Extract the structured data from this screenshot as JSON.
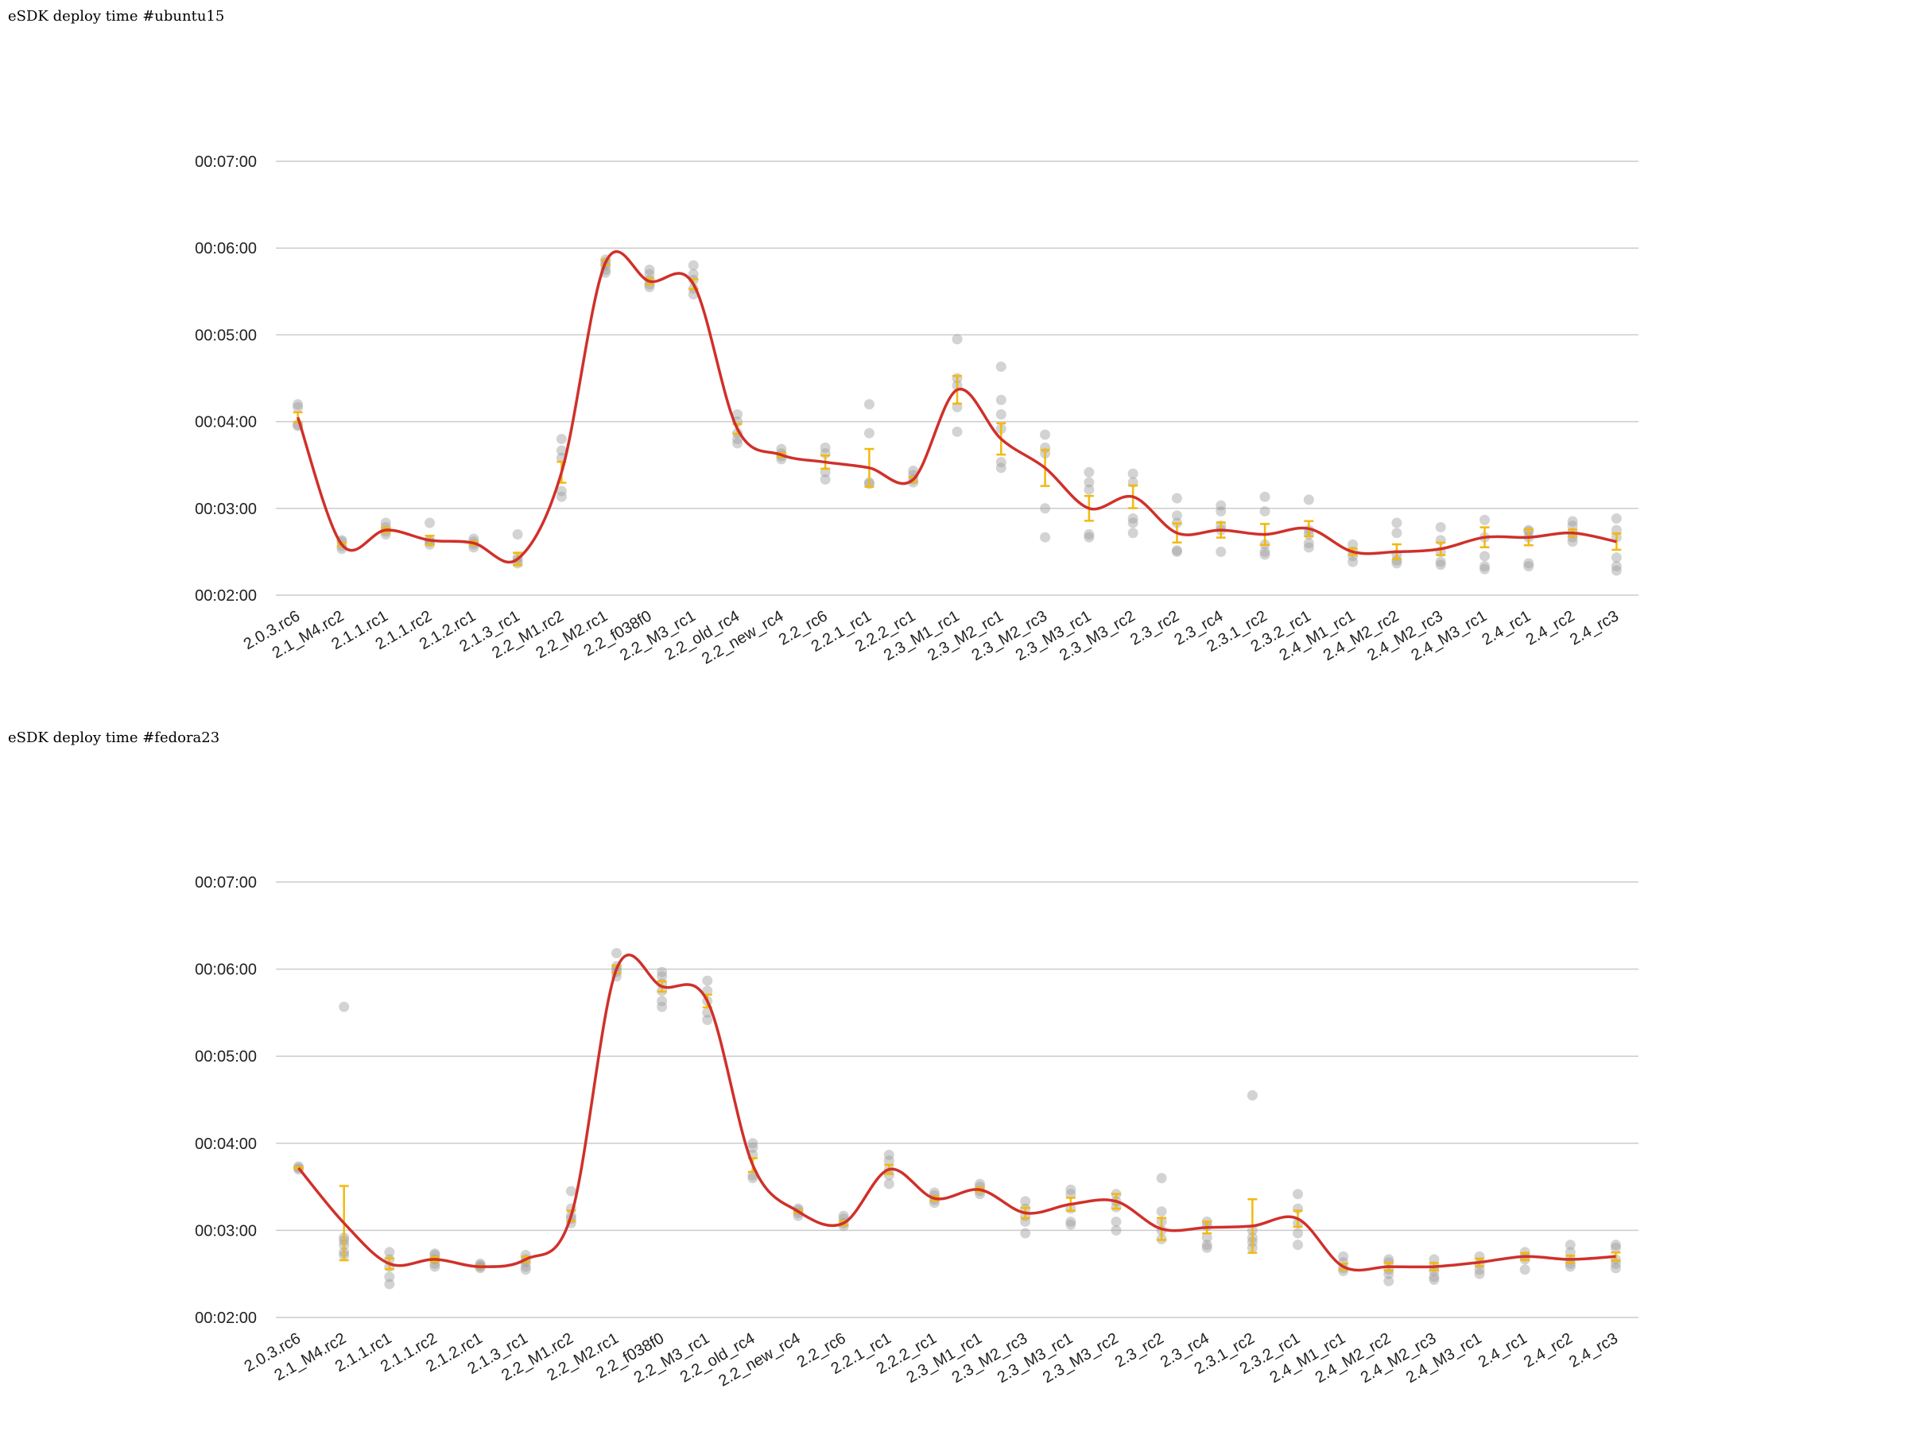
{
  "colors": {
    "trend": "#d0302a",
    "error_bar": "#f2b90f",
    "points": "#9e9e9e",
    "grid": "#cccccc"
  },
  "chart_data": [
    {
      "type": "scatter",
      "title": "eSDK deploy time #ubuntu15",
      "ylabel": "",
      "xlabel": "",
      "ylim": [
        120,
        420
      ],
      "yticks": [
        "00:02:00",
        "00:03:00",
        "00:04:00",
        "00:05:00",
        "00:06:00",
        "00:07:00"
      ],
      "grid": true,
      "trendline": "smooth mean",
      "categories": [
        "2.0.3.rc6",
        "2.1_M4.rc2",
        "2.1.1.rc1",
        "2.1.1.rc2",
        "2.1.2.rc1",
        "2.1.3_rc1",
        "2.2_M1.rc2",
        "2.2_M2.rc1",
        "2.2_f038f0",
        "2.2_M3_rc1",
        "2.2_old_rc4",
        "2.2_new_rc4",
        "2.2_rc6",
        "2.2.1_rc1",
        "2.2.2_rc1",
        "2.3_M1_rc1",
        "2.3_M2_rc1",
        "2.3_M2_rc3",
        "2.3_M3_rc1",
        "2.3_M3_rc2",
        "2.3_rc2",
        "2.3_rc4",
        "2.3.1_rc2",
        "2.3.2_rc1",
        "2.4_M1_rc1",
        "2.4_M2_rc2",
        "2.4_M2_rc3",
        "2.4_M3_rc1",
        "2.4_rc1",
        "2.4_rc2",
        "2.4_rc3"
      ],
      "mean_seconds": [
        243,
        155,
        165,
        158,
        156,
        145,
        205,
        350,
        337,
        335,
        235,
        217,
        212,
        208,
        200,
        262,
        228,
        208,
        180,
        188,
        163,
        165,
        162,
        166,
        150,
        150,
        152,
        160,
        160,
        163,
        157
      ],
      "samples_seconds": [
        [
          237,
          238,
          250,
          252
        ],
        [
          152,
          154,
          157,
          158
        ],
        [
          162,
          164,
          167,
          170
        ],
        [
          155,
          157,
          158,
          170
        ],
        [
          153,
          155,
          157,
          159
        ],
        [
          142,
          144,
          146,
          162
        ],
        [
          188,
          192,
          215,
          220,
          228
        ],
        [
          343,
          345,
          348,
          350,
          352
        ],
        [
          333,
          335,
          338,
          342,
          345
        ],
        [
          328,
          332,
          338,
          342,
          348
        ],
        [
          225,
          228,
          232,
          240,
          245
        ],
        [
          214,
          216,
          218,
          221
        ],
        [
          200,
          205,
          218,
          222
        ],
        [
          197,
          198,
          232,
          252
        ],
        [
          198,
          200,
          203,
          206
        ],
        [
          233,
          250,
          265,
          270,
          297
        ],
        [
          208,
          212,
          235,
          245,
          255,
          278
        ],
        [
          160,
          180,
          218,
          222,
          231
        ],
        [
          160,
          162,
          193,
          198,
          205
        ],
        [
          163,
          170,
          173,
          198,
          204
        ],
        [
          150,
          151,
          170,
          175,
          187
        ],
        [
          150,
          165,
          168,
          178,
          182
        ],
        [
          148,
          150,
          155,
          178,
          188
        ],
        [
          153,
          156,
          162,
          165,
          186
        ],
        [
          143,
          147,
          150,
          155
        ],
        [
          142,
          144,
          148,
          163,
          170
        ],
        [
          141,
          143,
          150,
          158,
          167
        ],
        [
          138,
          140,
          147,
          160,
          172
        ],
        [
          140,
          142,
          160,
          164,
          165
        ],
        [
          157,
          160,
          163,
          168,
          171
        ],
        [
          137,
          140,
          146,
          160,
          165,
          173
        ]
      ]
    },
    {
      "type": "scatter",
      "title": "eSDK deploy time #fedora23",
      "ylabel": "",
      "xlabel": "",
      "ylim": [
        120,
        420
      ],
      "yticks": [
        "00:02:00",
        "00:03:00",
        "00:04:00",
        "00:05:00",
        "00:06:00",
        "00:07:00"
      ],
      "grid": true,
      "trendline": "smooth mean",
      "categories": [
        "2.0.3.rc6",
        "2.1_M4.rc2",
        "2.1.1.rc1",
        "2.1.1.rc2",
        "2.1.2.rc1",
        "2.1.3_rc1",
        "2.2_M1.rc2",
        "2.2_M2.rc1",
        "2.2_f038f0",
        "2.2_M3_rc1",
        "2.2_old_rc4",
        "2.2_new_rc4",
        "2.2_rc6",
        "2.2.1_rc1",
        "2.2.2_rc1",
        "2.3_M1_rc1",
        "2.3_M2_rc3",
        "2.3_M3_rc1",
        "2.3_M3_rc2",
        "2.3_rc2",
        "2.3_rc4",
        "2.3.1_rc2",
        "2.3.2_rc1",
        "2.4_M1_rc1",
        "2.4_M2_rc2",
        "2.4_M2_rc3",
        "2.4_M3_rc1",
        "2.4_rc1",
        "2.4_rc2",
        "2.4_rc3"
      ],
      "mean_seconds": [
        223,
        185,
        157,
        160,
        155,
        160,
        190,
        360,
        348,
        338,
        225,
        193,
        185,
        222,
        202,
        208,
        192,
        198,
        200,
        181,
        182,
        183,
        188,
        155,
        155,
        155,
        158,
        162,
        160,
        162
      ],
      "samples_seconds": [
        [
          222,
          223,
          224
        ],
        [
          163,
          165,
          170,
          173,
          175,
          334
        ],
        [
          143,
          148,
          155,
          160,
          165
        ],
        [
          155,
          157,
          160,
          163,
          164
        ],
        [
          154,
          155,
          156,
          157
        ],
        [
          153,
          155,
          158,
          160,
          163
        ],
        [
          185,
          188,
          190,
          195,
          207
        ],
        [
          355,
          358,
          360,
          362,
          371
        ],
        [
          334,
          338,
          345,
          350,
          355,
          358
        ],
        [
          325,
          330,
          338,
          345,
          352
        ],
        [
          216,
          218,
          232,
          237,
          240
        ],
        [
          190,
          192,
          194,
          195
        ],
        [
          183,
          185,
          188,
          190
        ],
        [
          212,
          218,
          222,
          228,
          232
        ],
        [
          199,
          201,
          204,
          206
        ],
        [
          205,
          207,
          210,
          212
        ],
        [
          178,
          186,
          190,
          195,
          200
        ],
        [
          184,
          186,
          195,
          205,
          208
        ],
        [
          180,
          186,
          196,
          200,
          205
        ],
        [
          174,
          180,
          186,
          193,
          216
        ],
        [
          168,
          170,
          175,
          183,
          186
        ],
        [
          168,
          172,
          175,
          180,
          273
        ],
        [
          170,
          178,
          185,
          195,
          205
        ],
        [
          152,
          154,
          158,
          162
        ],
        [
          145,
          150,
          153,
          158,
          160
        ],
        [
          146,
          148,
          152,
          155,
          160
        ],
        [
          150,
          153,
          157,
          162
        ],
        [
          153,
          160,
          162,
          165
        ],
        [
          155,
          157,
          160,
          165,
          170
        ],
        [
          154,
          157,
          160,
          168,
          170
        ]
      ]
    }
  ]
}
